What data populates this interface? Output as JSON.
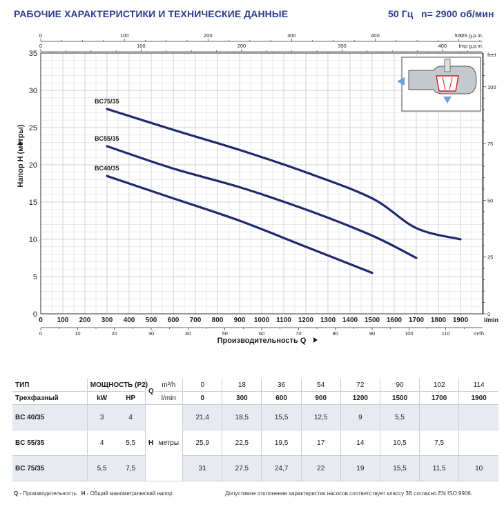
{
  "header": {
    "title": "РАБОЧИЕ ХАРАКТЕРИСТИКИ И ТЕХНИЧЕСКИЕ ДАННЫЕ",
    "freq": "50 Гц",
    "speed": "n= 2900 об/мин"
  },
  "chart_data": {
    "type": "line",
    "xlabel": "Производительность Q",
    "x_unit": "l/min",
    "ylabel": "Напор H (метры)",
    "xlim": [
      0,
      2000
    ],
    "ylim": [
      0,
      35
    ],
    "grid": true,
    "x_ticks": [
      0,
      100,
      200,
      300,
      400,
      500,
      600,
      700,
      800,
      900,
      1000,
      1100,
      1200,
      1300,
      1400,
      1500,
      1600,
      1700,
      1800,
      1900
    ],
    "y_ticks": [
      0,
      5,
      10,
      15,
      20,
      25,
      30,
      35
    ],
    "m3h_axis": {
      "unit": "m³/h",
      "ticks": [
        0,
        10,
        20,
        30,
        40,
        50,
        60,
        70,
        80,
        90,
        100,
        110
      ]
    },
    "usgpm_axis": {
      "unit": "US g.p.m.",
      "ticks": [
        0,
        100,
        200,
        300,
        400,
        500
      ]
    },
    "impgpm_axis": {
      "unit": "Imp g.p.m.",
      "ticks": [
        0,
        100,
        200,
        300,
        400
      ]
    },
    "feet_axis": {
      "unit": "feet",
      "ticks": [
        0,
        25,
        50,
        75,
        100
      ]
    },
    "series": [
      {
        "name": "BC75/35",
        "x": [
          300,
          600,
          900,
          1200,
          1500,
          1700,
          1900
        ],
        "y": [
          27.5,
          24.7,
          22,
          19,
          15.5,
          11.5,
          10
        ]
      },
      {
        "name": "BC55/35",
        "x": [
          300,
          600,
          900,
          1200,
          1500,
          1700
        ],
        "y": [
          22.5,
          19.5,
          17,
          14,
          10.5,
          7.5
        ]
      },
      {
        "name": "BC40/35",
        "x": [
          300,
          600,
          900,
          1200,
          1500
        ],
        "y": [
          18.5,
          15.5,
          12.5,
          9,
          5.5
        ]
      }
    ],
    "line_color": "#1f2a6e"
  },
  "table": {
    "type_label": "ТИП",
    "type_sub": "Трехфазный",
    "power_label": "МОЩНОСТЬ (P2)",
    "kw": "kW",
    "hp": "HP",
    "q_label": "Q",
    "m3h_label": "m³/h",
    "lmin_label": "l/min",
    "h_label": "H",
    "h_unit": "метры",
    "m3h_values": [
      "0",
      "18",
      "36",
      "54",
      "72",
      "90",
      "102",
      "114"
    ],
    "lmin_values": [
      "0",
      "300",
      "600",
      "900",
      "1200",
      "1500",
      "1700",
      "1900"
    ],
    "rows": [
      {
        "model": "BC 40/35",
        "kw": "3",
        "hp": "4",
        "h": [
          "21,4",
          "18,5",
          "15,5",
          "12,5",
          "9",
          "5,5",
          "",
          ""
        ]
      },
      {
        "model": "BC 55/35",
        "kw": "4",
        "hp": "5,5",
        "h": [
          "25,9",
          "22,5",
          "19,5",
          "17",
          "14",
          "10,5",
          "7,5",
          ""
        ]
      },
      {
        "model": "BC 75/35",
        "kw": "5,5",
        "hp": "7,5",
        "h": [
          "31",
          "27,5",
          "24,7",
          "22",
          "19",
          "15,5",
          "11,5",
          "10"
        ]
      }
    ]
  },
  "footer": {
    "q_key": "Q",
    "q_text": " - Производительность",
    "h_key": "H",
    "h_text": " - Общий манометрический напор",
    "note": "Допустимое отклонение характеристик насосов соответствует классу 3B согласно EN ISO 9906."
  }
}
